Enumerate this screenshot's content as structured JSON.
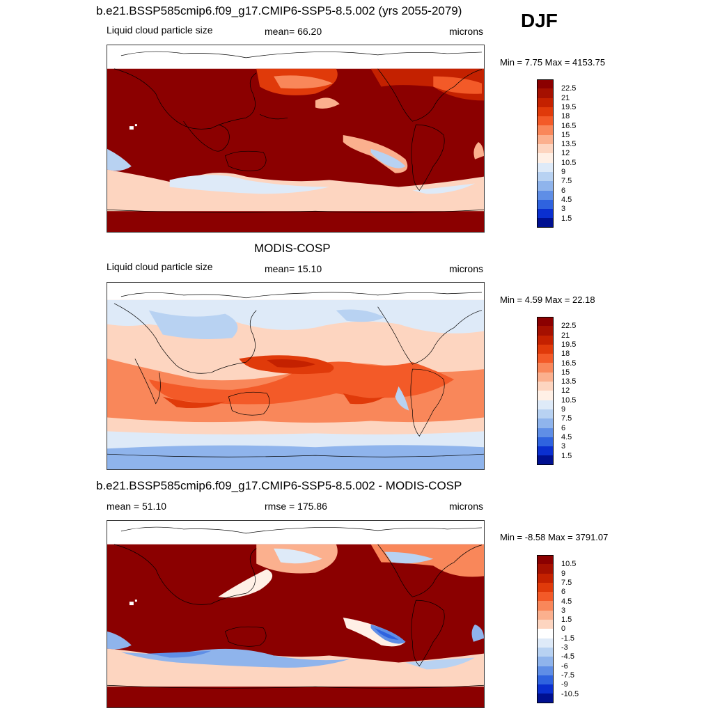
{
  "season": "DJF",
  "top": {
    "title": "b.e21.BSSP585cmip6.f09_g17.CMIP6-SSP5-8.5.002 (yrs 2055-2079)",
    "left": "Liquid cloud particle size",
    "center": "mean=  66.20",
    "right": "microns",
    "minmax": "Min =   7.75 Max = 4153.75"
  },
  "middle": {
    "title": "MODIS-COSP",
    "left": "Liquid cloud particle size",
    "center": "mean=  15.10",
    "right": "microns",
    "minmax": "Min =   4.59 Max =  22.18"
  },
  "bottom": {
    "title": "b.e21.BSSP585cmip6.f09_g17.CMIP6-SSP5-8.5.002 - MODIS-COSP",
    "left": "mean =  51.10",
    "center": "rmse = 175.86",
    "right": "microns",
    "minmax": "Min =  -8.58 Max = 3791.07"
  },
  "legend_abs": {
    "labels": [
      "22.5",
      "21",
      "19.5",
      "18",
      "16.5",
      "15",
      "13.5",
      "12",
      "10.5",
      "9",
      "7.5",
      "6",
      "4.5",
      "3",
      "1.5"
    ],
    "colors": [
      "#8b0000",
      "#a51000",
      "#c42100",
      "#e03a0a",
      "#f35a28",
      "#f9875a",
      "#fbb08e",
      "#fdd5c0",
      "#fff0e6",
      "#deeaf8",
      "#b8d2f2",
      "#8fb4ec",
      "#5f8ee6",
      "#2f63df",
      "#0a2fcf",
      "#001090"
    ]
  },
  "legend_diff": {
    "labels": [
      "10.5",
      "9",
      "7.5",
      "6",
      "4.5",
      "3",
      "1.5",
      "0",
      "-1.5",
      "-3",
      "-4.5",
      "-6",
      "-7.5",
      "-9",
      "-10.5"
    ],
    "colors": [
      "#8b0000",
      "#a51000",
      "#c42100",
      "#e03a0a",
      "#f35a28",
      "#f9875a",
      "#fbb08e",
      "#fdd5c0",
      "#ffffff",
      "#deeaf8",
      "#b8d2f2",
      "#8fb4ec",
      "#5f8ee6",
      "#2f63df",
      "#0a2fcf",
      "#001090"
    ]
  }
}
